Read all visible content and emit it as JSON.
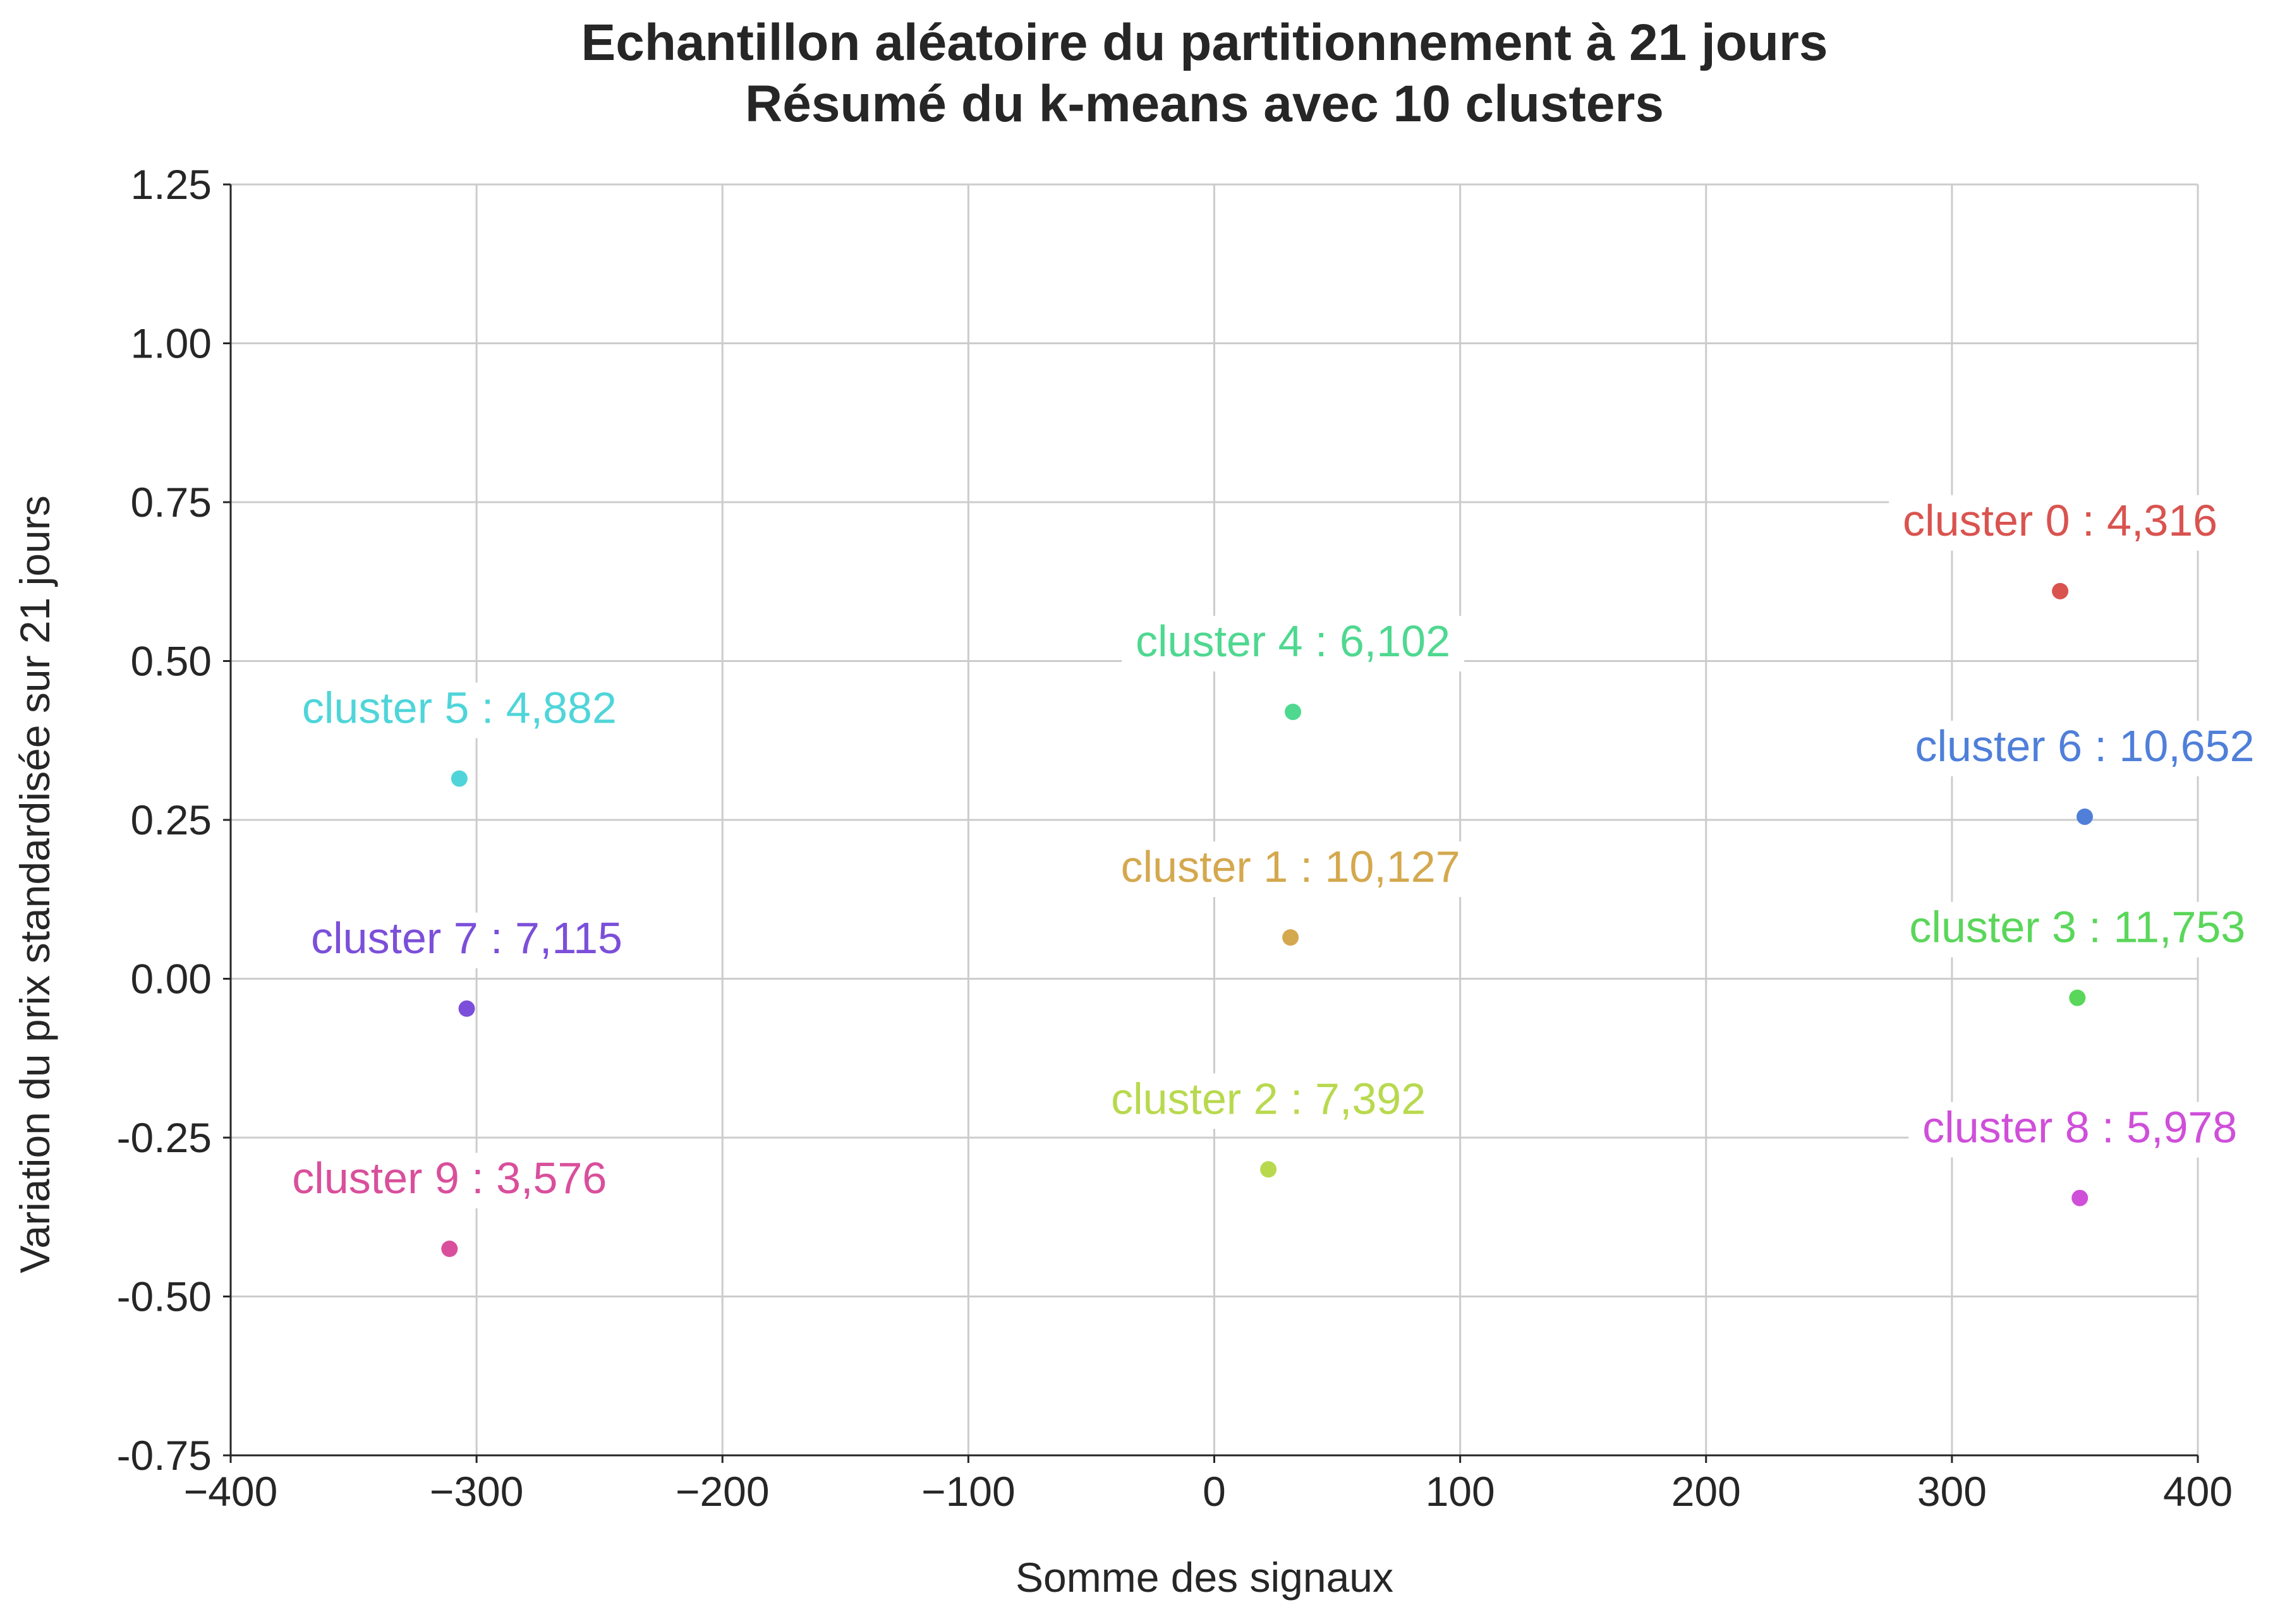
{
  "chart_data": {
    "type": "scatter",
    "title_lines": [
      "Echantillon aléatoire du partitionnement à 21 jours",
      "Résumé du k-means avec 10 clusters"
    ],
    "xlabel": "Somme des signaux",
    "ylabel": "Variation du prix standardisée sur 21 jours",
    "xlim": [
      -400,
      400
    ],
    "ylim": [
      -0.75,
      1.25
    ],
    "xticks": [
      -400,
      -300,
      -200,
      -100,
      0,
      100,
      200,
      300,
      400
    ],
    "xtick_labels": [
      "−400",
      "−300",
      "−200",
      "−100",
      "0",
      "100",
      "200",
      "300",
      "400"
    ],
    "yticks": [
      1.25,
      1.0,
      0.75,
      0.5,
      0.25,
      0.0,
      -0.25,
      -0.5,
      -0.75
    ],
    "ytick_labels": [
      "1.25",
      "1.00",
      "0.75",
      "0.50",
      "0.25",
      "0.00",
      "-0.25",
      "-0.50",
      "-0.75"
    ],
    "grid": true,
    "points": [
      {
        "label": "cluster 0 : 4,316",
        "x": 344,
        "y": 0.61,
        "color": "#d9534f"
      },
      {
        "label": "cluster 1 : 10,127",
        "x": 31,
        "y": 0.065,
        "color": "#d4a84e"
      },
      {
        "label": "cluster 2 : 7,392",
        "x": 22,
        "y": -0.3,
        "color": "#b8d94e"
      },
      {
        "label": "cluster 3 : 11,753",
        "x": 351,
        "y": -0.03,
        "color": "#5ad65a"
      },
      {
        "label": "cluster 4 : 6,102",
        "x": 32,
        "y": 0.42,
        "color": "#4fd890"
      },
      {
        "label": "cluster 5 : 4,882",
        "x": -307,
        "y": 0.315,
        "color": "#4fd5d9"
      },
      {
        "label": "cluster 6 : 10,652",
        "x": 354,
        "y": 0.255,
        "color": "#4f7fd9"
      },
      {
        "label": "cluster 7 : 7,115",
        "x": -304,
        "y": -0.047,
        "color": "#7b4fd9"
      },
      {
        "label": "cluster 8 : 5,978",
        "x": 352,
        "y": -0.345,
        "color": "#cf4fd9"
      },
      {
        "label": "cluster 9 : 3,576",
        "x": -311,
        "y": -0.425,
        "color": "#d94f9c"
      }
    ]
  }
}
